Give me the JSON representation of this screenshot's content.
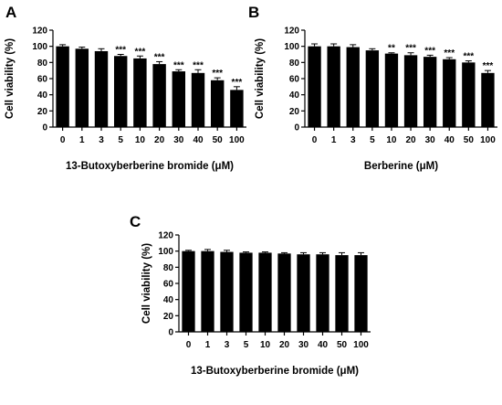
{
  "chart_data": [
    {
      "type": "bar",
      "panel": "A",
      "xlabel": "13-Butoxyberberine bromide (μM)",
      "ylabel": "Cell viability (%)",
      "ylim": [
        0,
        120
      ],
      "yticks": [
        "0",
        "20",
        "40",
        "60",
        "80",
        "100",
        "120"
      ],
      "categories": [
        "0",
        "1",
        "3",
        "5",
        "10",
        "20",
        "30",
        "40",
        "50",
        "100"
      ],
      "values": [
        100,
        97,
        94,
        88,
        85,
        78,
        69,
        67,
        58,
        46
      ],
      "errors": [
        2,
        2,
        3,
        2,
        3,
        3,
        2,
        4,
        3,
        4
      ],
      "significance": [
        "",
        "",
        "",
        "***",
        "***",
        "***",
        "***",
        "***",
        "***",
        "***"
      ]
    },
    {
      "type": "bar",
      "panel": "B",
      "xlabel": "Berberine (μM)",
      "ylabel": "Cell viability (%)",
      "ylim": [
        0,
        120
      ],
      "yticks": [
        "0",
        "20",
        "40",
        "60",
        "80",
        "100",
        "120"
      ],
      "categories": [
        "0",
        "1",
        "3",
        "5",
        "10",
        "20",
        "30",
        "40",
        "50",
        "100"
      ],
      "values": [
        100,
        100,
        99,
        95,
        91,
        89,
        87,
        84,
        80,
        67
      ],
      "errors": [
        3,
        3,
        3,
        2,
        1,
        3,
        2,
        2,
        2,
        3
      ],
      "significance": [
        "",
        "",
        "",
        "",
        "**",
        "***",
        "***",
        "***",
        "***",
        "***"
      ]
    },
    {
      "type": "bar",
      "panel": "C",
      "xlabel": "13-Butoxyberberine bromide (μM)",
      "ylabel": "Cell viability (%)",
      "ylim": [
        0,
        120
      ],
      "yticks": [
        "0",
        "20",
        "40",
        "60",
        "80",
        "100",
        "120"
      ],
      "categories": [
        "0",
        "1",
        "3",
        "5",
        "10",
        "20",
        "30",
        "40",
        "50",
        "100"
      ],
      "values": [
        100,
        100,
        99,
        98,
        98,
        97,
        96,
        96,
        95,
        95
      ],
      "errors": [
        1,
        2,
        2,
        1,
        1,
        1,
        2,
        2,
        3,
        3
      ],
      "significance": [
        "",
        "",
        "",
        "",
        "",
        "",
        "",
        "",
        "",
        ""
      ]
    }
  ],
  "colors": {
    "bar": "#000000",
    "axis": "#000000",
    "background": "#ffffff"
  }
}
